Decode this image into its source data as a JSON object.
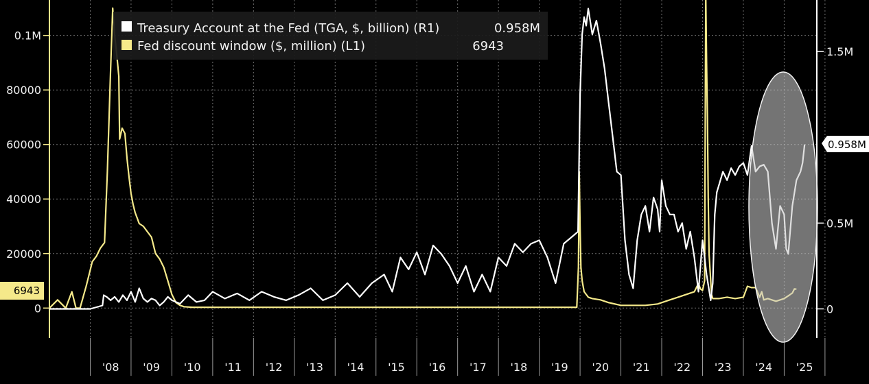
{
  "chart_data": {
    "type": "line",
    "x_tick_labels": [
      "'08",
      "'09",
      "'10",
      "'11",
      "'12",
      "'13",
      "'14",
      "'15",
      "'16",
      "'17",
      "'18",
      "'19",
      "'20",
      "'21",
      "'22",
      "'23",
      "'24",
      "'25"
    ],
    "left_axis": {
      "ticks": [
        {
          "value": 0,
          "label": "0"
        },
        {
          "value": 20000,
          "label": "20000"
        },
        {
          "value": 40000,
          "label": "40000"
        },
        {
          "value": 60000,
          "label": "60000"
        },
        {
          "value": 80000,
          "label": "80000"
        },
        {
          "value": 100000,
          "label": "0.1M"
        }
      ],
      "ylim": [
        -11000,
        113000
      ]
    },
    "right_axis": {
      "ticks": [
        {
          "value": 0,
          "label": "0"
        },
        {
          "value": 0.5,
          "label": "0.5M"
        },
        {
          "value": 1.5,
          "label": "1.5M"
        }
      ],
      "ylim": [
        -0.17,
        1.8
      ]
    },
    "legend": {
      "placement": "top-left",
      "entries": [
        {
          "label": "Treasury Account at the Fed (TGA, $, billion) (R1)",
          "last_value": "0.958M",
          "color": "#ffffff"
        },
        {
          "label": "Fed discount window ($, million) (L1)",
          "last_value": "6943",
          "color": "#f5e98a"
        }
      ]
    },
    "tags": {
      "left_last": "6943",
      "right_last": "0.958M"
    },
    "xlim": [
      2007.0,
      2025.8
    ],
    "series": [
      {
        "name": "Fed discount window ($, million) (L1)",
        "axis": "left",
        "color": "#f5e98a",
        "x": [
          2007.0,
          2007.2,
          2007.4,
          2007.55,
          2007.65,
          2007.75,
          2007.9,
          2008.0,
          2008.05,
          2008.15,
          2008.25,
          2008.35,
          2008.42,
          2008.5,
          2008.55,
          2008.6,
          2008.65,
          2008.7,
          2008.72,
          2008.78,
          2008.85,
          2008.9,
          2008.95,
          2009.0,
          2009.05,
          2009.1,
          2009.15,
          2009.2,
          2009.3,
          2009.4,
          2009.5,
          2009.6,
          2009.7,
          2009.8,
          2009.9,
          2010.0,
          2010.1,
          2010.2,
          2010.3,
          2010.5,
          2011.0,
          2012.0,
          2013.0,
          2014.0,
          2015.0,
          2016.0,
          2017.0,
          2018.0,
          2019.0,
          2019.92,
          2019.96,
          2019.98,
          2020.0,
          2020.02,
          2020.05,
          2020.1,
          2020.15,
          2020.2,
          2020.3,
          2020.5,
          2020.7,
          2021.0,
          2021.3,
          2021.6,
          2021.9,
          2022.0,
          2022.2,
          2022.4,
          2022.6,
          2022.8,
          2022.9,
          2022.95,
          2023.0,
          2023.05,
          2023.08,
          2023.1,
          2023.12,
          2023.14,
          2023.16,
          2023.2,
          2023.22,
          2023.25,
          2023.3,
          2023.4,
          2023.6,
          2023.8,
          2024.0,
          2024.1,
          2024.2,
          2024.3,
          2024.4,
          2024.45,
          2024.5,
          2024.6,
          2024.8,
          2025.0,
          2025.1,
          2025.2,
          2025.25,
          2025.3
        ],
        "y": [
          0,
          3000,
          0,
          6000,
          0,
          0,
          8000,
          14000,
          17000,
          19000,
          22000,
          24000,
          50000,
          88000,
          110000,
          100000,
          93000,
          85000,
          62000,
          66000,
          64000,
          55000,
          48000,
          42000,
          38000,
          35000,
          33000,
          31000,
          30000,
          28000,
          26000,
          20000,
          18000,
          15000,
          10000,
          5000,
          2000,
          1000,
          500,
          300,
          300,
          300,
          300,
          300,
          300,
          300,
          300,
          300,
          300,
          300,
          15000,
          50000,
          30000,
          15000,
          10000,
          6000,
          5000,
          4000,
          3500,
          3000,
          2000,
          1000,
          1000,
          1000,
          1500,
          2000,
          3000,
          4000,
          5000,
          6000,
          9000,
          7000,
          6500,
          10000,
          115000,
          90000,
          70000,
          40000,
          20000,
          10000,
          5000,
          3500,
          3500,
          3500,
          4000,
          3500,
          4000,
          8000,
          7500,
          7500,
          4000,
          6000,
          3000,
          3500,
          2500,
          3500,
          4500,
          5500,
          7000,
          6943
        ]
      },
      {
        "name": "Treasury Account at the Fed (TGA, $, billion) (R1)",
        "axis": "right",
        "color": "#ffffff",
        "x": [
          2007.0,
          2008.0,
          2008.3,
          2008.33,
          2008.4,
          2008.5,
          2008.6,
          2008.7,
          2008.8,
          2008.9,
          2009.0,
          2009.1,
          2009.2,
          2009.3,
          2009.4,
          2009.5,
          2009.6,
          2009.7,
          2009.8,
          2009.9,
          2010.0,
          2010.2,
          2010.4,
          2010.6,
          2010.8,
          2011.0,
          2011.3,
          2011.6,
          2011.9,
          2012.2,
          2012.5,
          2012.8,
          2013.1,
          2013.4,
          2013.7,
          2014.0,
          2014.3,
          2014.6,
          2014.9,
          2015.2,
          2015.4,
          2015.6,
          2015.8,
          2016.0,
          2016.2,
          2016.4,
          2016.6,
          2016.8,
          2017.0,
          2017.2,
          2017.4,
          2017.6,
          2017.8,
          2018.0,
          2018.2,
          2018.4,
          2018.6,
          2018.8,
          2019.0,
          2019.2,
          2019.4,
          2019.6,
          2019.8,
          2019.95,
          2020.0,
          2020.05,
          2020.1,
          2020.15,
          2020.2,
          2020.3,
          2020.4,
          2020.5,
          2020.6,
          2020.7,
          2020.8,
          2020.9,
          2021.0,
          2021.1,
          2021.2,
          2021.3,
          2021.4,
          2021.5,
          2021.6,
          2021.7,
          2021.8,
          2021.9,
          2021.95,
          2022.0,
          2022.1,
          2022.2,
          2022.3,
          2022.4,
          2022.5,
          2022.6,
          2022.7,
          2022.8,
          2022.9,
          2023.0,
          2023.1,
          2023.2,
          2023.25,
          2023.3,
          2023.35,
          2023.4,
          2023.5,
          2023.6,
          2023.7,
          2023.8,
          2023.9,
          2024.0,
          2024.1,
          2024.2,
          2024.3,
          2024.4,
          2024.5,
          2024.6,
          2024.7,
          2024.8,
          2024.9,
          2025.0,
          2025.05,
          2025.1,
          2025.2,
          2025.3,
          2025.4,
          2025.45,
          2025.5
        ],
        "y": [
          0.0,
          0.0,
          0.02,
          0.08,
          0.07,
          0.05,
          0.07,
          0.04,
          0.08,
          0.05,
          0.1,
          0.04,
          0.12,
          0.06,
          0.04,
          0.06,
          0.05,
          0.02,
          0.04,
          0.07,
          0.05,
          0.03,
          0.08,
          0.04,
          0.05,
          0.1,
          0.06,
          0.09,
          0.05,
          0.1,
          0.07,
          0.05,
          0.08,
          0.12,
          0.05,
          0.08,
          0.15,
          0.07,
          0.15,
          0.2,
          0.1,
          0.3,
          0.23,
          0.33,
          0.2,
          0.37,
          0.32,
          0.25,
          0.15,
          0.25,
          0.1,
          0.2,
          0.1,
          0.3,
          0.25,
          0.38,
          0.33,
          0.38,
          0.4,
          0.3,
          0.15,
          0.38,
          0.42,
          0.45,
          1.25,
          1.6,
          1.7,
          1.65,
          1.75,
          1.6,
          1.68,
          1.55,
          1.4,
          1.2,
          1.0,
          0.8,
          0.78,
          0.4,
          0.2,
          0.12,
          0.4,
          0.55,
          0.6,
          0.45,
          0.65,
          0.58,
          0.45,
          0.75,
          0.6,
          0.55,
          0.55,
          0.45,
          0.5,
          0.35,
          0.45,
          0.3,
          0.1,
          0.4,
          0.2,
          0.05,
          0.15,
          0.55,
          0.68,
          0.72,
          0.8,
          0.75,
          0.82,
          0.78,
          0.83,
          0.85,
          0.78,
          0.95,
          0.8,
          0.83,
          0.84,
          0.8,
          0.5,
          0.35,
          0.6,
          0.55,
          0.35,
          0.32,
          0.6,
          0.75,
          0.8,
          0.85,
          0.958
        ]
      }
    ]
  }
}
